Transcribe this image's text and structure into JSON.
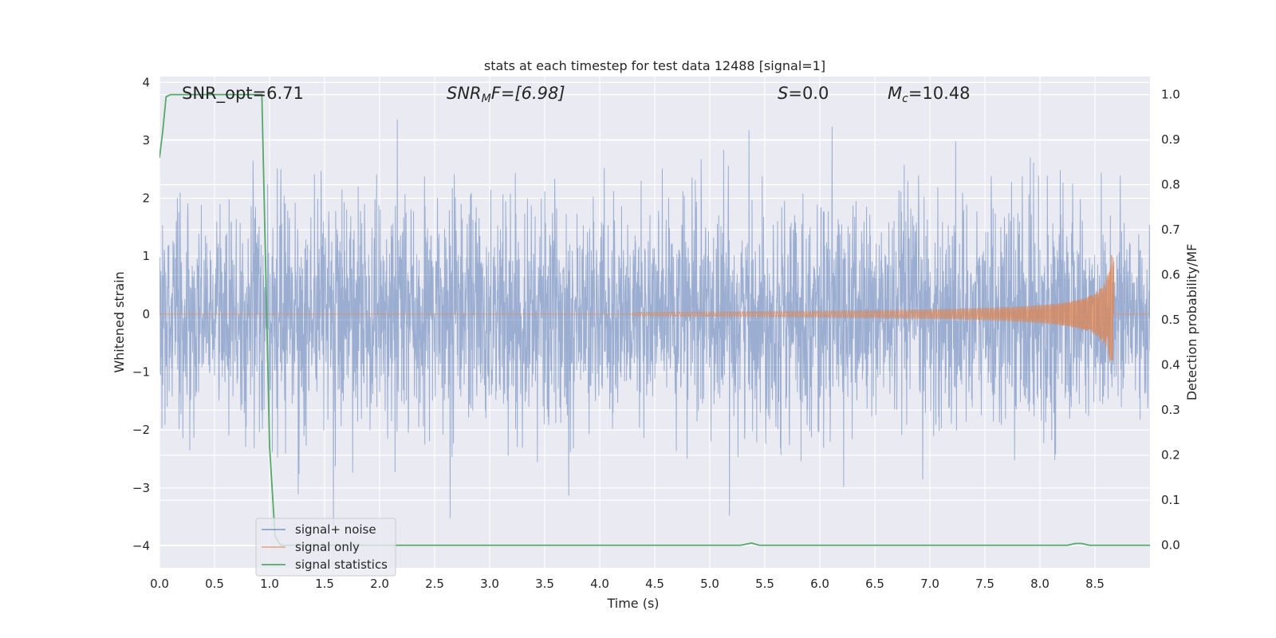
{
  "chart_data": {
    "type": "line",
    "title": "stats at each timestep for test data 12488 [signal=1]",
    "xlabel": "Time (s)",
    "ylabel_left": "Whitened strain",
    "ylabel_right": "Detection probability/MF",
    "xlim": [
      0.0,
      9.0
    ],
    "ylim_left": [
      -4.38,
      4.1
    ],
    "ylim_right": [
      -0.05,
      1.04
    ],
    "xticks": [
      0.0,
      0.5,
      1.0,
      1.5,
      2.0,
      2.5,
      3.0,
      3.5,
      4.0,
      4.5,
      5.0,
      5.5,
      6.0,
      6.5,
      7.0,
      7.5,
      8.0,
      8.5
    ],
    "xtick_labels": [
      "0.0",
      "0.5",
      "1.0",
      "1.5",
      "2.0",
      "2.5",
      "3.0",
      "3.5",
      "4.0",
      "4.5",
      "5.0",
      "5.5",
      "6.0",
      "6.5",
      "7.0",
      "7.5",
      "8.0",
      "8.5"
    ],
    "yticks_left": [
      4,
      3,
      2,
      1,
      0,
      -1,
      -2,
      -3,
      -4
    ],
    "ytick_labels_left": [
      "4",
      "3",
      "2",
      "1",
      "0",
      "−1",
      "−2",
      "−3",
      "−4"
    ],
    "yticks_right": [
      1.0,
      0.9,
      0.8,
      0.7,
      0.6,
      0.5,
      0.4,
      0.3,
      0.2,
      0.1,
      0.0
    ],
    "ytick_labels_right": [
      "1.0",
      "0.9",
      "0.8",
      "0.7",
      "0.6",
      "0.5",
      "0.4",
      "0.3",
      "0.2",
      "0.1",
      "0.0"
    ],
    "grid": true,
    "legend_position": "lower-left",
    "annotations": {
      "snr_opt": "SNR_opt=6.71",
      "snr_mf_label": "SNR",
      "snr_mf_sub": "M",
      "snr_mf_rest": "F=[6.98]",
      "s_label": "S",
      "s_rest": "=0.0",
      "mc_label": "M",
      "mc_sub": "c",
      "mc_rest": "=10.48"
    },
    "series": [
      {
        "name": "signal+ noise",
        "axis": "left",
        "color": "#4c72b0",
        "description": "dense Gaussian-like noise, approx amplitude range −3.7 to 3.6",
        "envelope": {
          "typical": 1.5,
          "max": 3.6,
          "min": -3.7
        }
      },
      {
        "name": "signal only",
        "axis": "left",
        "color": "#dd8452",
        "description": "chirp: amplitude grows toward merger near t=8.67 s",
        "chirp": {
          "t_start": 4.3,
          "t_merger": 8.67,
          "peak_amp": 1.05,
          "min_amp": -0.8
        }
      },
      {
        "name": "signal statistics",
        "axis": "right",
        "color": "#55a868",
        "x": [
          0.0,
          0.03,
          0.06,
          0.1,
          0.3,
          0.5,
          0.7,
          0.9,
          0.93,
          0.95,
          1.0,
          1.05,
          1.1,
          1.3,
          2.0,
          3.0,
          4.0,
          5.0,
          5.28,
          5.38,
          5.45,
          6.0,
          7.0,
          8.0,
          8.25,
          8.32,
          8.38,
          8.45,
          9.0
        ],
        "values": [
          0.86,
          0.92,
          0.995,
          1.0,
          1.0,
          1.0,
          1.0,
          1.0,
          1.0,
          0.78,
          0.22,
          0.02,
          0.0,
          0.0,
          0.0,
          0.0,
          0.0,
          0.0,
          0.0,
          0.005,
          0.0,
          0.0,
          0.0,
          0.0,
          0.0,
          0.004,
          0.004,
          0.0,
          0.0
        ]
      }
    ]
  },
  "colors": {
    "plot_background": "#eaeaf2",
    "grid": "#ffffff",
    "noise": "#4c72b0",
    "signal": "#dd8452",
    "stats": "#55a868"
  }
}
